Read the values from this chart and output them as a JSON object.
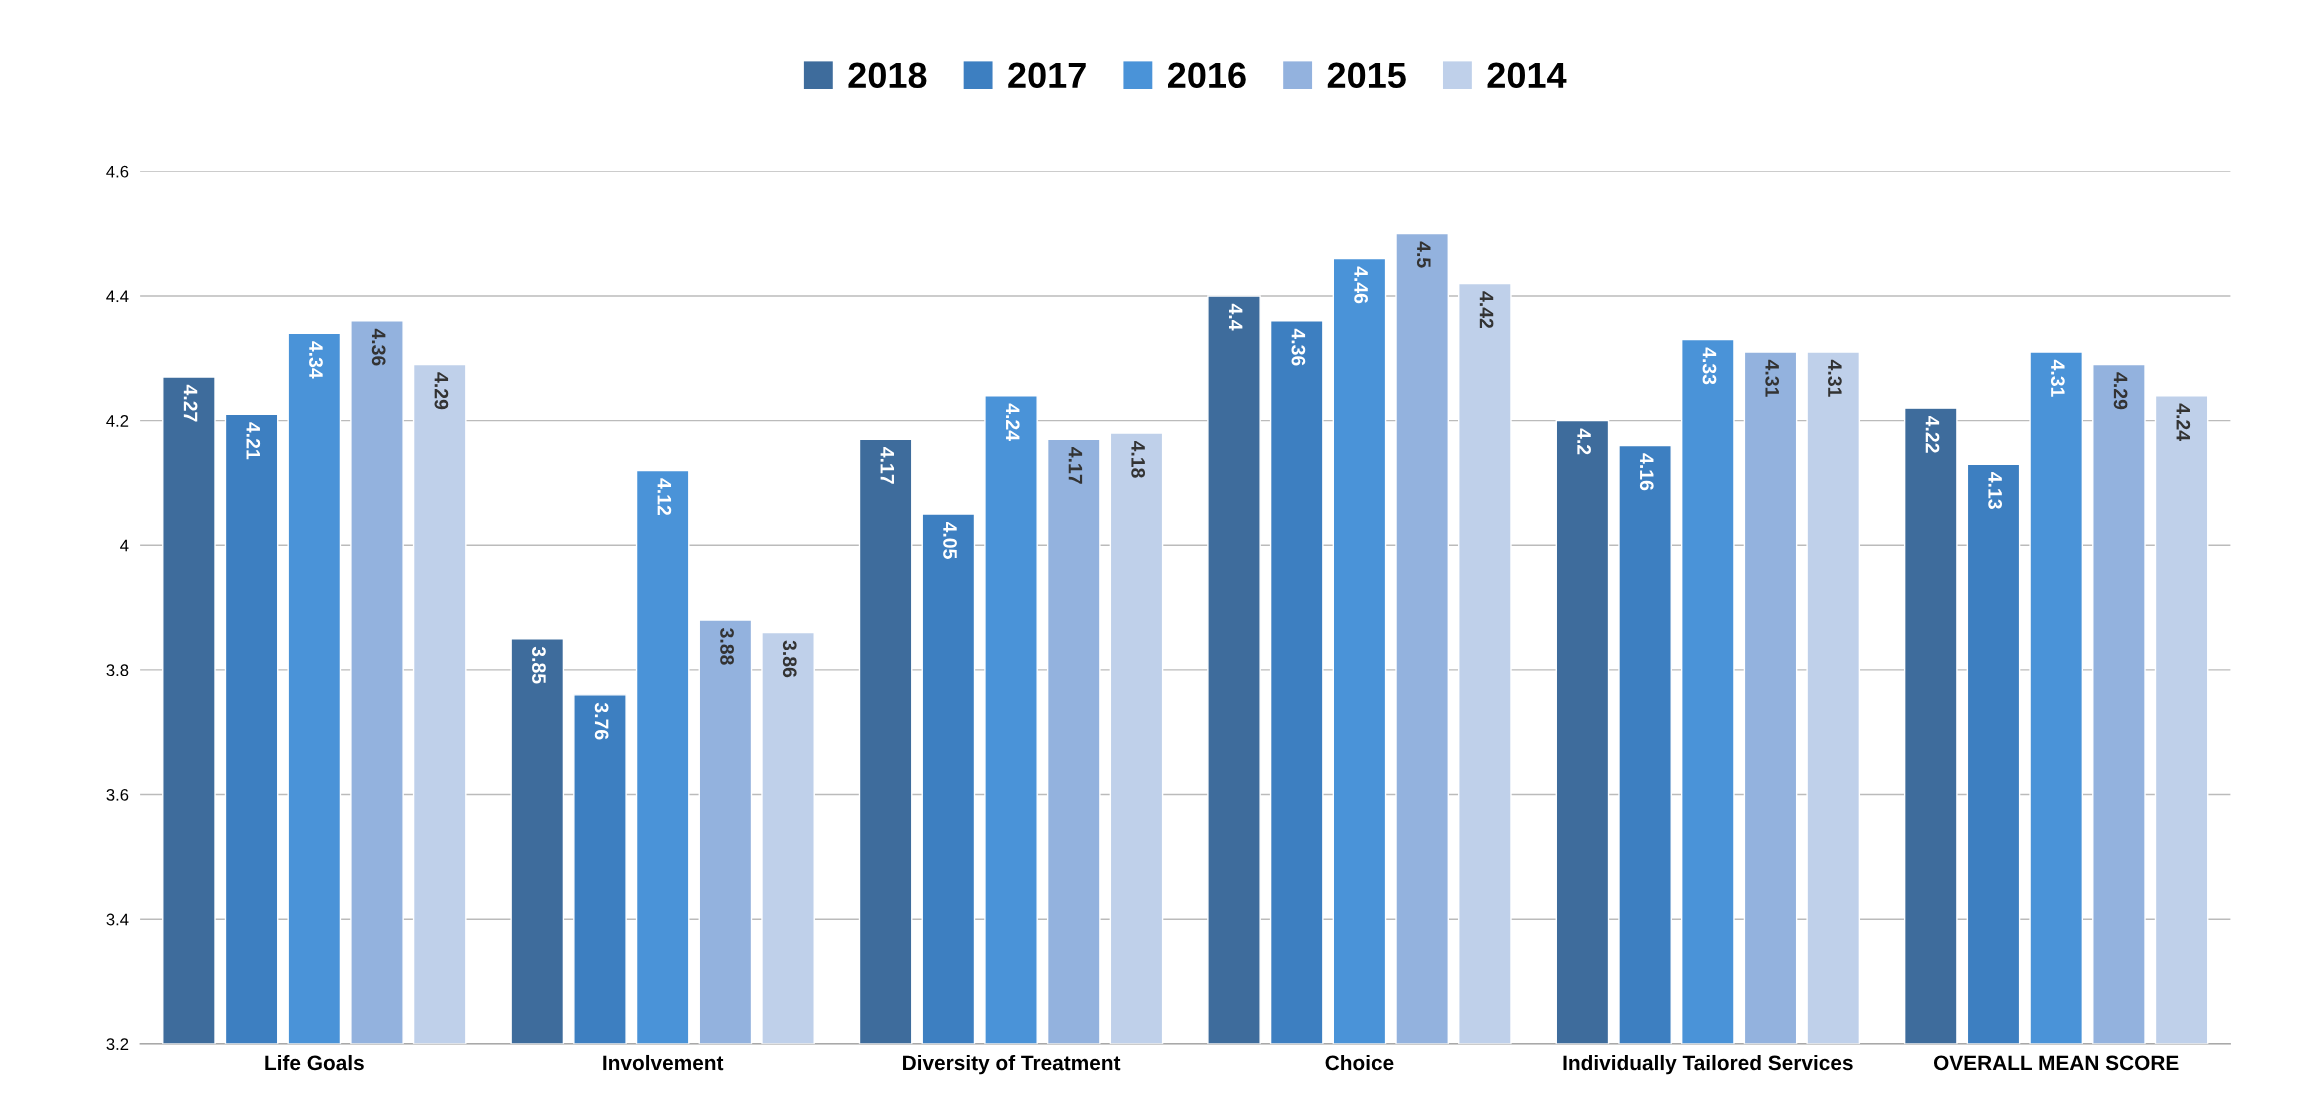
{
  "chart_data": {
    "type": "bar",
    "categories": [
      "Life Goals",
      "Involvement",
      "Diversity of Treatment",
      "Choice",
      "Individually Tailored Services",
      "OVERALL MEAN SCORE"
    ],
    "series": [
      {
        "name": "2018",
        "color": "#3e6c9c",
        "values": [
          4.27,
          3.85,
          4.17,
          4.4,
          4.2,
          4.22
        ]
      },
      {
        "name": "2017",
        "color": "#3d7fc1",
        "values": [
          4.21,
          3.76,
          4.05,
          4.36,
          4.16,
          4.13
        ]
      },
      {
        "name": "2016",
        "color": "#4a93d8",
        "values": [
          4.34,
          4.12,
          4.24,
          4.46,
          4.33,
          4.31
        ]
      },
      {
        "name": "2015",
        "color": "#93b2de",
        "values": [
          4.36,
          3.88,
          4.17,
          4.5,
          4.31,
          4.29
        ]
      },
      {
        "name": "2014",
        "color": "#bfd0ea",
        "values": [
          4.29,
          3.86,
          4.18,
          4.42,
          4.31,
          4.24
        ]
      }
    ],
    "ylim": [
      3.2,
      4.6
    ],
    "yticks": [
      3.2,
      3.4,
      3.6,
      3.8,
      4,
      4.2,
      4.4,
      4.6
    ],
    "grid": "y",
    "legend": "top",
    "data_labels": true
  }
}
